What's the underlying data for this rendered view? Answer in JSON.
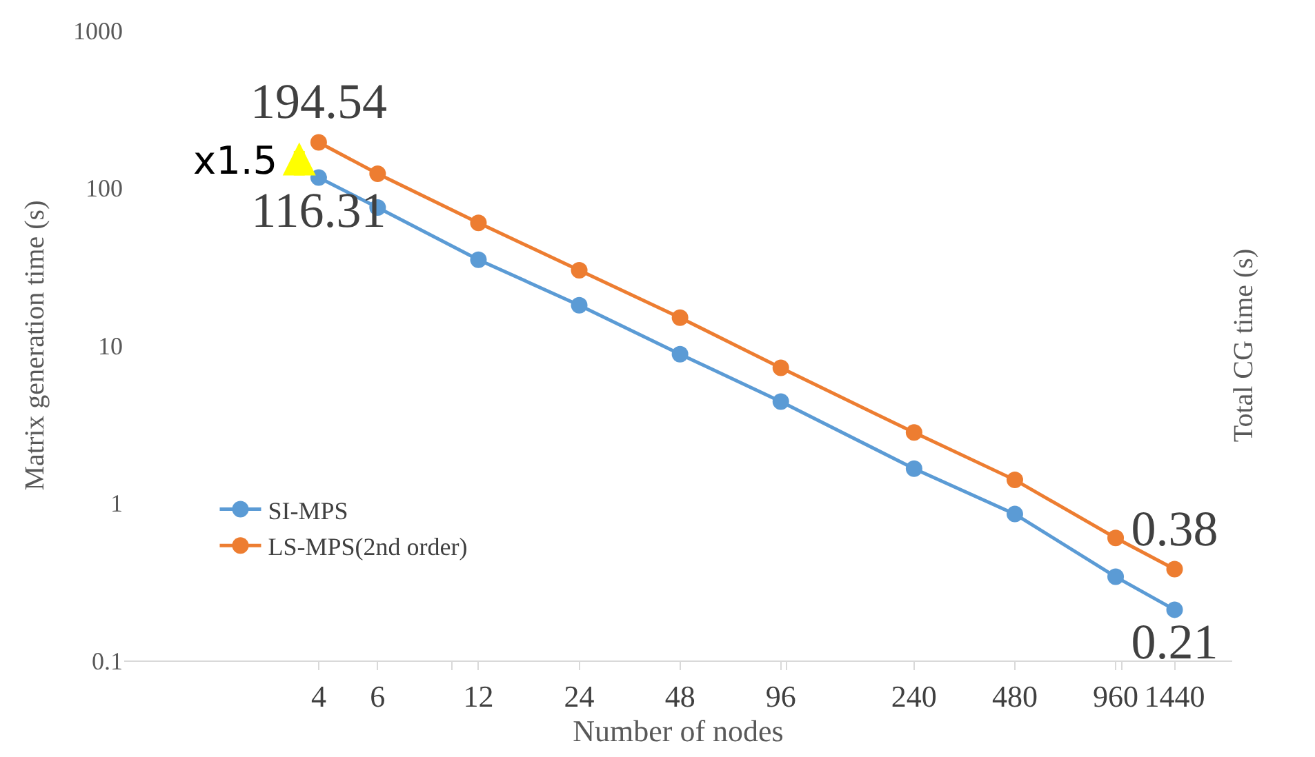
{
  "chart_data": {
    "type": "line",
    "xlabel": "Number of nodes",
    "ylabel": "Matrix generation time (s)",
    "y2label": "Total CG time (s)",
    "x": [
      4,
      6,
      12,
      24,
      48,
      96,
      240,
      480,
      960,
      1440
    ],
    "series": [
      {
        "name": "SI-MPS",
        "color": "#5b9bd5",
        "values": [
          116.31,
          75,
          35,
          18,
          8.8,
          4.4,
          1.65,
          0.85,
          0.34,
          0.21
        ],
        "value_labels": [
          "116.31",
          null,
          null,
          null,
          null,
          null,
          null,
          null,
          null,
          "0.21"
        ]
      },
      {
        "name": "LS-MPS(2nd order)",
        "color": "#ed7d31",
        "values": [
          194.54,
          123,
          60,
          30,
          15,
          7.2,
          2.8,
          1.4,
          0.6,
          0.38
        ],
        "value_labels": [
          "194.54",
          null,
          null,
          null,
          null,
          null,
          null,
          null,
          null,
          "0.38"
        ]
      }
    ],
    "log": "xy",
    "xlim": [
      1.05,
      2140
    ],
    "ylim": [
      0.1,
      1000
    ],
    "xticks": [
      4,
      6,
      {
        "value": 10,
        "label": null
      },
      12,
      24,
      48,
      96,
      {
        "value": 100,
        "label": null
      },
      240,
      480,
      960,
      {
        "value": 1000,
        "label": null
      },
      1440
    ],
    "yticks": [
      0.1,
      1,
      10,
      100,
      1000
    ],
    "annotations": [
      {
        "text": "x1.5",
        "x": 3.5,
        "y": 150
      }
    ],
    "grid": false,
    "legend": "bottom left",
    "marker": "circle",
    "line_style": "solid"
  }
}
